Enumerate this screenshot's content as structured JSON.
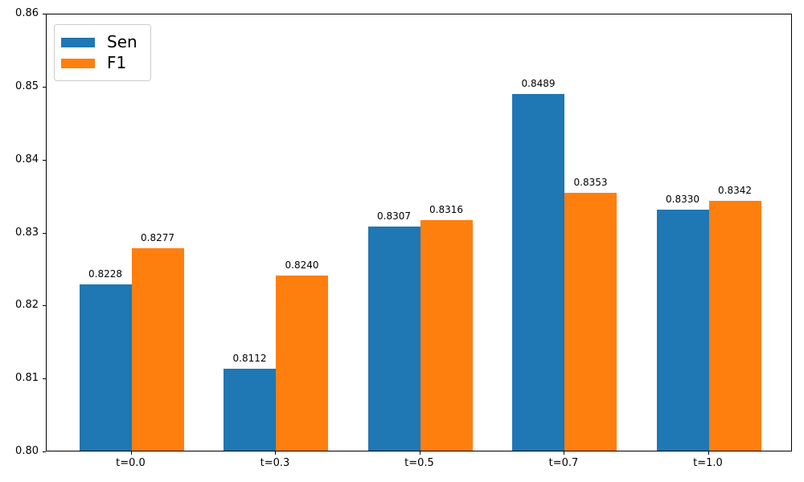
{
  "chart_data": {
    "type": "bar",
    "title": "",
    "xlabel": "",
    "ylabel": "",
    "categories": [
      "t=0.0",
      "t=0.3",
      "t=0.5",
      "t=0.7",
      "t=1.0"
    ],
    "series": [
      {
        "name": "Sen",
        "color": "#1f77b4",
        "values": [
          0.8228,
          0.8112,
          0.8307,
          0.8489,
          0.833
        ],
        "labels": [
          "0.8228",
          "0.8112",
          "0.8307",
          "0.8489",
          "0.8330"
        ]
      },
      {
        "name": "F1",
        "color": "#ff7f0e",
        "values": [
          0.8277,
          0.824,
          0.8316,
          0.8353,
          0.8342
        ],
        "labels": [
          "0.8277",
          "0.8240",
          "0.8316",
          "0.8353",
          "0.8342"
        ]
      }
    ],
    "ylim": [
      0.8,
      0.86
    ],
    "y_ticks": [
      "0.80",
      "0.81",
      "0.82",
      "0.83",
      "0.84",
      "0.85",
      "0.86"
    ],
    "grid": false,
    "legend_position": "upper left"
  }
}
